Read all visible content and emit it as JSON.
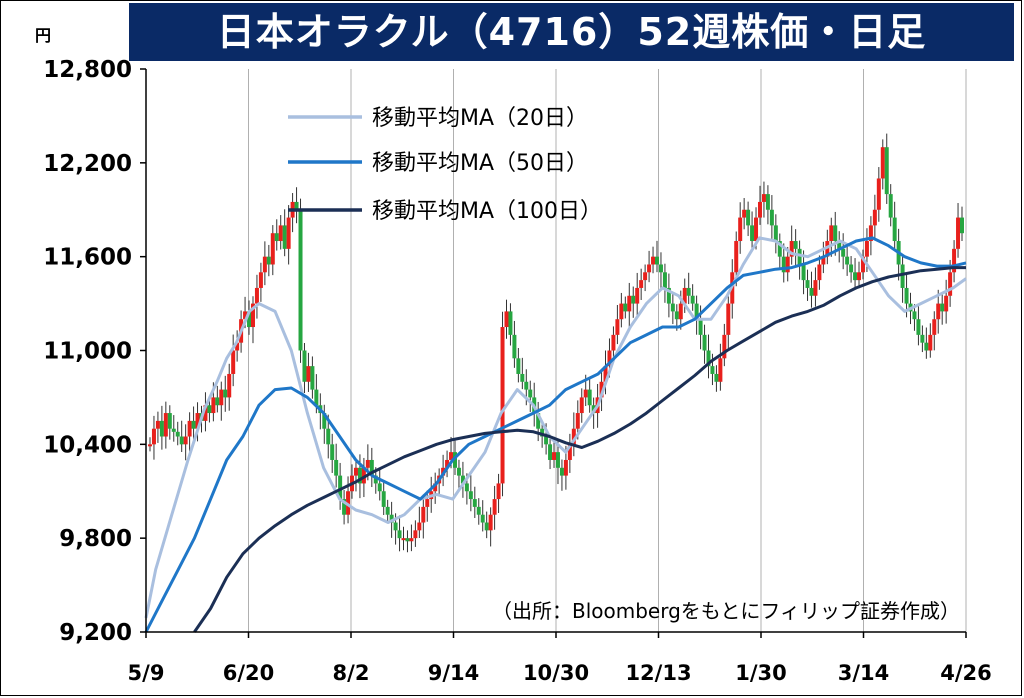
{
  "chart_data": {
    "type": "candlestick",
    "title": "日本オラクル（4716）52週株価・日足",
    "unit_label": "円",
    "source_note": "（出所：Bloombergをもとにフィリップ証券作成）",
    "ylim": [
      9200,
      12800
    ],
    "y_ticks": [
      9200,
      9800,
      10400,
      11000,
      11600,
      12200,
      12800
    ],
    "y_tick_labels": [
      "9,200",
      "9,800",
      "10,400",
      "11,000",
      "11,600",
      "12,200",
      "12,800"
    ],
    "x_tick_labels": [
      "5/9",
      "6/20",
      "8/2",
      "9/14",
      "10/30",
      "12/13",
      "1/30",
      "3/14",
      "4/26"
    ],
    "grid": "vertical",
    "legend_position": "top-left",
    "colors": {
      "up": "#e8201c",
      "down": "#26a641",
      "ma20": "#a9bfdf",
      "ma50": "#1f77c8",
      "ma100": "#1b2f55",
      "title_bg": "#0a2a66"
    },
    "series": [
      {
        "name": "移動平均MA（20日）",
        "key": "ma20",
        "x": [
          0,
          3,
          8,
          13,
          18,
          22,
          25,
          28,
          32,
          35,
          40,
          45,
          50,
          55,
          60,
          65,
          70,
          75,
          80,
          85,
          90,
          95,
          100,
          105,
          110,
          115,
          120,
          125,
          130,
          135,
          140,
          145,
          150,
          155,
          160,
          165,
          170,
          175,
          180,
          185,
          190,
          195,
          200,
          205,
          210,
          215,
          220,
          225,
          230,
          235,
          240,
          245,
          250,
          254
        ],
        "values": [
          9290,
          9600,
          9950,
          10300,
          10620,
          10800,
          10950,
          11050,
          11250,
          11300,
          11250,
          11000,
          10600,
          10250,
          10050,
          9980,
          9950,
          9900,
          9950,
          10050,
          10080,
          10050,
          10200,
          10350,
          10600,
          10750,
          10650,
          10450,
          10350,
          10500,
          10650,
          10950,
          11150,
          11300,
          11400,
          11350,
          11200,
          11200,
          11350,
          11550,
          11720,
          11700,
          11620,
          11600,
          11650,
          11700,
          11650,
          11500,
          11350,
          11250,
          11300,
          11350,
          11400,
          11460
        ]
      },
      {
        "name": "移動平均MA（50日）",
        "key": "ma50",
        "x": [
          0,
          5,
          10,
          15,
          20,
          25,
          30,
          35,
          40,
          45,
          50,
          55,
          60,
          65,
          70,
          75,
          80,
          85,
          90,
          95,
          100,
          105,
          110,
          115,
          120,
          125,
          130,
          135,
          140,
          145,
          150,
          155,
          160,
          165,
          170,
          175,
          180,
          185,
          190,
          195,
          200,
          205,
          210,
          215,
          220,
          225,
          230,
          235,
          240,
          245,
          250,
          254
        ],
        "values": [
          9200,
          9400,
          9600,
          9800,
          10050,
          10300,
          10450,
          10650,
          10750,
          10760,
          10700,
          10600,
          10450,
          10300,
          10200,
          10150,
          10100,
          10050,
          10150,
          10300,
          10400,
          10450,
          10500,
          10550,
          10600,
          10650,
          10750,
          10800,
          10850,
          10950,
          11050,
          11100,
          11150,
          11150,
          11200,
          11300,
          11400,
          11480,
          11500,
          11520,
          11530,
          11560,
          11600,
          11650,
          11700,
          11720,
          11670,
          11600,
          11560,
          11540,
          11540,
          11560
        ]
      },
      {
        "name": "移動平均MA（100日）",
        "key": "ma100",
        "x": [
          15,
          20,
          25,
          30,
          35,
          40,
          45,
          50,
          55,
          60,
          65,
          70,
          75,
          80,
          85,
          90,
          95,
          100,
          105,
          110,
          115,
          120,
          125,
          130,
          135,
          140,
          145,
          150,
          155,
          160,
          165,
          170,
          175,
          180,
          185,
          190,
          195,
          200,
          205,
          210,
          215,
          220,
          225,
          230,
          235,
          240,
          245,
          250,
          254
        ],
        "values": [
          9200,
          9350,
          9550,
          9700,
          9800,
          9880,
          9950,
          10010,
          10060,
          10110,
          10160,
          10220,
          10270,
          10320,
          10360,
          10400,
          10430,
          10450,
          10470,
          10480,
          10490,
          10480,
          10450,
          10410,
          10380,
          10420,
          10470,
          10530,
          10600,
          10680,
          10760,
          10840,
          10930,
          11000,
          11060,
          11120,
          11180,
          11220,
          11250,
          11290,
          11350,
          11400,
          11440,
          11470,
          11490,
          11510,
          11520,
          11530,
          11530
        ]
      }
    ],
    "candles": [
      {
        "x": 0,
        "y": 10400
      },
      {
        "x": 1,
        "y": 10500
      },
      {
        "x": 2,
        "y": 10550
      },
      {
        "x": 3,
        "y": 10450
      },
      {
        "x": 4,
        "y": 10600
      },
      {
        "x": 5,
        "y": 10500
      },
      {
        "x": 6,
        "y": 10480
      },
      {
        "x": 7,
        "y": 10450
      },
      {
        "x": 8,
        "y": 10400
      },
      {
        "x": 9,
        "y": 10450
      },
      {
        "x": 10,
        "y": 10550
      },
      {
        "x": 11,
        "y": 10500
      },
      {
        "x": 12,
        "y": 10600
      },
      {
        "x": 13,
        "y": 10550
      },
      {
        "x": 14,
        "y": 10650
      },
      {
        "x": 15,
        "y": 10600
      },
      {
        "x": 16,
        "y": 10700
      },
      {
        "x": 17,
        "y": 10650
      },
      {
        "x": 18,
        "y": 10750
      },
      {
        "x": 19,
        "y": 10700
      },
      {
        "x": 20,
        "y": 10850
      },
      {
        "x": 21,
        "y": 11000
      },
      {
        "x": 22,
        "y": 11050
      },
      {
        "x": 23,
        "y": 11200
      },
      {
        "x": 24,
        "y": 11250
      },
      {
        "x": 25,
        "y": 11150
      },
      {
        "x": 26,
        "y": 11300
      },
      {
        "x": 27,
        "y": 11400
      },
      {
        "x": 28,
        "y": 11500
      },
      {
        "x": 29,
        "y": 11600
      },
      {
        "x": 30,
        "y": 11550
      },
      {
        "x": 31,
        "y": 11750
      },
      {
        "x": 32,
        "y": 11700
      },
      {
        "x": 33,
        "y": 11800
      },
      {
        "x": 34,
        "y": 11650
      },
      {
        "x": 35,
        "y": 11850
      },
      {
        "x": 36,
        "y": 11950
      },
      {
        "x": 37,
        "y": 11900
      },
      {
        "x": 38,
        "y": 11000
      },
      {
        "x": 39,
        "y": 10800
      },
      {
        "x": 40,
        "y": 10900
      },
      {
        "x": 41,
        "y": 10750
      },
      {
        "x": 42,
        "y": 10650
      },
      {
        "x": 43,
        "y": 10600
      },
      {
        "x": 44,
        "y": 10500
      },
      {
        "x": 45,
        "y": 10400
      },
      {
        "x": 46,
        "y": 10300
      },
      {
        "x": 47,
        "y": 10200
      },
      {
        "x": 48,
        "y": 10050
      },
      {
        "x": 49,
        "y": 9950
      },
      {
        "x": 50,
        "y": 10100
      },
      {
        "x": 51,
        "y": 10200
      },
      {
        "x": 52,
        "y": 10250
      },
      {
        "x": 53,
        "y": 10150
      },
      {
        "x": 54,
        "y": 10250
      },
      {
        "x": 55,
        "y": 10300
      },
      {
        "x": 56,
        "y": 10200
      },
      {
        "x": 57,
        "y": 10150
      },
      {
        "x": 58,
        "y": 10100
      },
      {
        "x": 59,
        "y": 10000
      },
      {
        "x": 60,
        "y": 9950
      },
      {
        "x": 61,
        "y": 9900
      },
      {
        "x": 62,
        "y": 9850
      },
      {
        "x": 63,
        "y": 9800
      },
      {
        "x": 64,
        "y": 9800
      },
      {
        "x": 65,
        "y": 9780
      },
      {
        "x": 66,
        "y": 9800
      },
      {
        "x": 67,
        "y": 9850
      },
      {
        "x": 68,
        "y": 9900
      },
      {
        "x": 69,
        "y": 10000
      },
      {
        "x": 70,
        "y": 10050
      },
      {
        "x": 71,
        "y": 10100
      },
      {
        "x": 72,
        "y": 10150
      },
      {
        "x": 73,
        "y": 10200
      },
      {
        "x": 74,
        "y": 10250
      },
      {
        "x": 75,
        "y": 10300
      },
      {
        "x": 76,
        "y": 10350
      },
      {
        "x": 77,
        "y": 10250
      },
      {
        "x": 78,
        "y": 10200
      },
      {
        "x": 79,
        "y": 10150
      },
      {
        "x": 80,
        "y": 10100
      },
      {
        "x": 81,
        "y": 10050
      },
      {
        "x": 82,
        "y": 10000
      },
      {
        "x": 83,
        "y": 9950
      },
      {
        "x": 84,
        "y": 9900
      },
      {
        "x": 85,
        "y": 9850
      },
      {
        "x": 86,
        "y": 9950
      },
      {
        "x": 87,
        "y": 10050
      },
      {
        "x": 88,
        "y": 10150
      },
      {
        "x": 89,
        "y": 11150
      },
      {
        "x": 90,
        "y": 11250
      },
      {
        "x": 91,
        "y": 11100
      },
      {
        "x": 92,
        "y": 10950
      },
      {
        "x": 93,
        "y": 10850
      },
      {
        "x": 94,
        "y": 10800
      },
      {
        "x": 95,
        "y": 10750
      },
      {
        "x": 96,
        "y": 10700
      },
      {
        "x": 97,
        "y": 10600
      },
      {
        "x": 98,
        "y": 10500
      },
      {
        "x": 99,
        "y": 10450
      },
      {
        "x": 100,
        "y": 10400
      },
      {
        "x": 101,
        "y": 10300
      },
      {
        "x": 102,
        "y": 10350
      },
      {
        "x": 103,
        "y": 10250
      },
      {
        "x": 104,
        "y": 10200
      },
      {
        "x": 105,
        "y": 10300
      },
      {
        "x": 106,
        "y": 10400
      },
      {
        "x": 107,
        "y": 10500
      },
      {
        "x": 108,
        "y": 10600
      },
      {
        "x": 109,
        "y": 10700
      },
      {
        "x": 110,
        "y": 10750
      },
      {
        "x": 111,
        "y": 10650
      },
      {
        "x": 112,
        "y": 10600
      },
      {
        "x": 113,
        "y": 10700
      },
      {
        "x": 114,
        "y": 10800
      },
      {
        "x": 115,
        "y": 10900
      },
      {
        "x": 116,
        "y": 11000
      },
      {
        "x": 117,
        "y": 11100
      },
      {
        "x": 118,
        "y": 11200
      },
      {
        "x": 119,
        "y": 11300
      },
      {
        "x": 120,
        "y": 11250
      },
      {
        "x": 121,
        "y": 11350
      },
      {
        "x": 122,
        "y": 11300
      },
      {
        "x": 123,
        "y": 11400
      },
      {
        "x": 124,
        "y": 11450
      },
      {
        "x": 125,
        "y": 11500
      },
      {
        "x": 126,
        "y": 11550
      },
      {
        "x": 127,
        "y": 11600
      },
      {
        "x": 128,
        "y": 11550
      },
      {
        "x": 129,
        "y": 11500
      },
      {
        "x": 130,
        "y": 11400
      },
      {
        "x": 131,
        "y": 11300
      },
      {
        "x": 132,
        "y": 11250
      },
      {
        "x": 133,
        "y": 11200
      },
      {
        "x": 134,
        "y": 11300
      },
      {
        "x": 135,
        "y": 11400
      },
      {
        "x": 136,
        "y": 11350
      },
      {
        "x": 137,
        "y": 11300
      },
      {
        "x": 138,
        "y": 11200
      },
      {
        "x": 139,
        "y": 11100
      },
      {
        "x": 140,
        "y": 11000
      },
      {
        "x": 141,
        "y": 10900
      },
      {
        "x": 142,
        "y": 10850
      },
      {
        "x": 143,
        "y": 10800
      },
      {
        "x": 144,
        "y": 10950
      },
      {
        "x": 145,
        "y": 11100
      },
      {
        "x": 146,
        "y": 11300
      },
      {
        "x": 147,
        "y": 11500
      },
      {
        "x": 148,
        "y": 11700
      },
      {
        "x": 149,
        "y": 11850
      },
      {
        "x": 150,
        "y": 11900
      },
      {
        "x": 151,
        "y": 11800
      },
      {
        "x": 152,
        "y": 11700
      },
      {
        "x": 153,
        "y": 11850
      },
      {
        "x": 154,
        "y": 11950
      },
      {
        "x": 155,
        "y": 12000
      },
      {
        "x": 156,
        "y": 11900
      },
      {
        "x": 157,
        "y": 11800
      },
      {
        "x": 158,
        "y": 11700
      },
      {
        "x": 159,
        "y": 11600
      },
      {
        "x": 160,
        "y": 11500
      },
      {
        "x": 161,
        "y": 11600
      },
      {
        "x": 162,
        "y": 11700
      },
      {
        "x": 163,
        "y": 11650
      },
      {
        "x": 164,
        "y": 11550
      },
      {
        "x": 165,
        "y": 11450
      },
      {
        "x": 166,
        "y": 11400
      },
      {
        "x": 167,
        "y": 11350
      },
      {
        "x": 168,
        "y": 11450
      },
      {
        "x": 169,
        "y": 11550
      },
      {
        "x": 170,
        "y": 11600
      },
      {
        "x": 171,
        "y": 11700
      },
      {
        "x": 172,
        "y": 11800
      },
      {
        "x": 173,
        "y": 11700
      },
      {
        "x": 174,
        "y": 11650
      },
      {
        "x": 175,
        "y": 11600
      },
      {
        "x": 176,
        "y": 11550
      },
      {
        "x": 177,
        "y": 11500
      },
      {
        "x": 178,
        "y": 11450
      },
      {
        "x": 179,
        "y": 11500
      },
      {
        "x": 180,
        "y": 11600
      },
      {
        "x": 181,
        "y": 11700
      },
      {
        "x": 182,
        "y": 11800
      },
      {
        "x": 183,
        "y": 11900
      },
      {
        "x": 184,
        "y": 12100
      },
      {
        "x": 185,
        "y": 12300
      },
      {
        "x": 186,
        "y": 12000
      },
      {
        "x": 187,
        "y": 11850
      },
      {
        "x": 188,
        "y": 11700
      },
      {
        "x": 189,
        "y": 11550
      },
      {
        "x": 190,
        "y": 11400
      },
      {
        "x": 191,
        "y": 11300
      },
      {
        "x": 192,
        "y": 11250
      },
      {
        "x": 193,
        "y": 11200
      },
      {
        "x": 194,
        "y": 11100
      },
      {
        "x": 195,
        "y": 11050
      },
      {
        "x": 196,
        "y": 11000
      },
      {
        "x": 197,
        "y": 11100
      },
      {
        "x": 198,
        "y": 11200
      },
      {
        "x": 199,
        "y": 11300
      },
      {
        "x": 200,
        "y": 11250
      },
      {
        "x": 201,
        "y": 11350
      },
      {
        "x": 202,
        "y": 11500
      },
      {
        "x": 203,
        "y": 11650
      },
      {
        "x": 204,
        "y": 11850
      },
      {
        "x": 205,
        "y": 11750
      }
    ]
  }
}
